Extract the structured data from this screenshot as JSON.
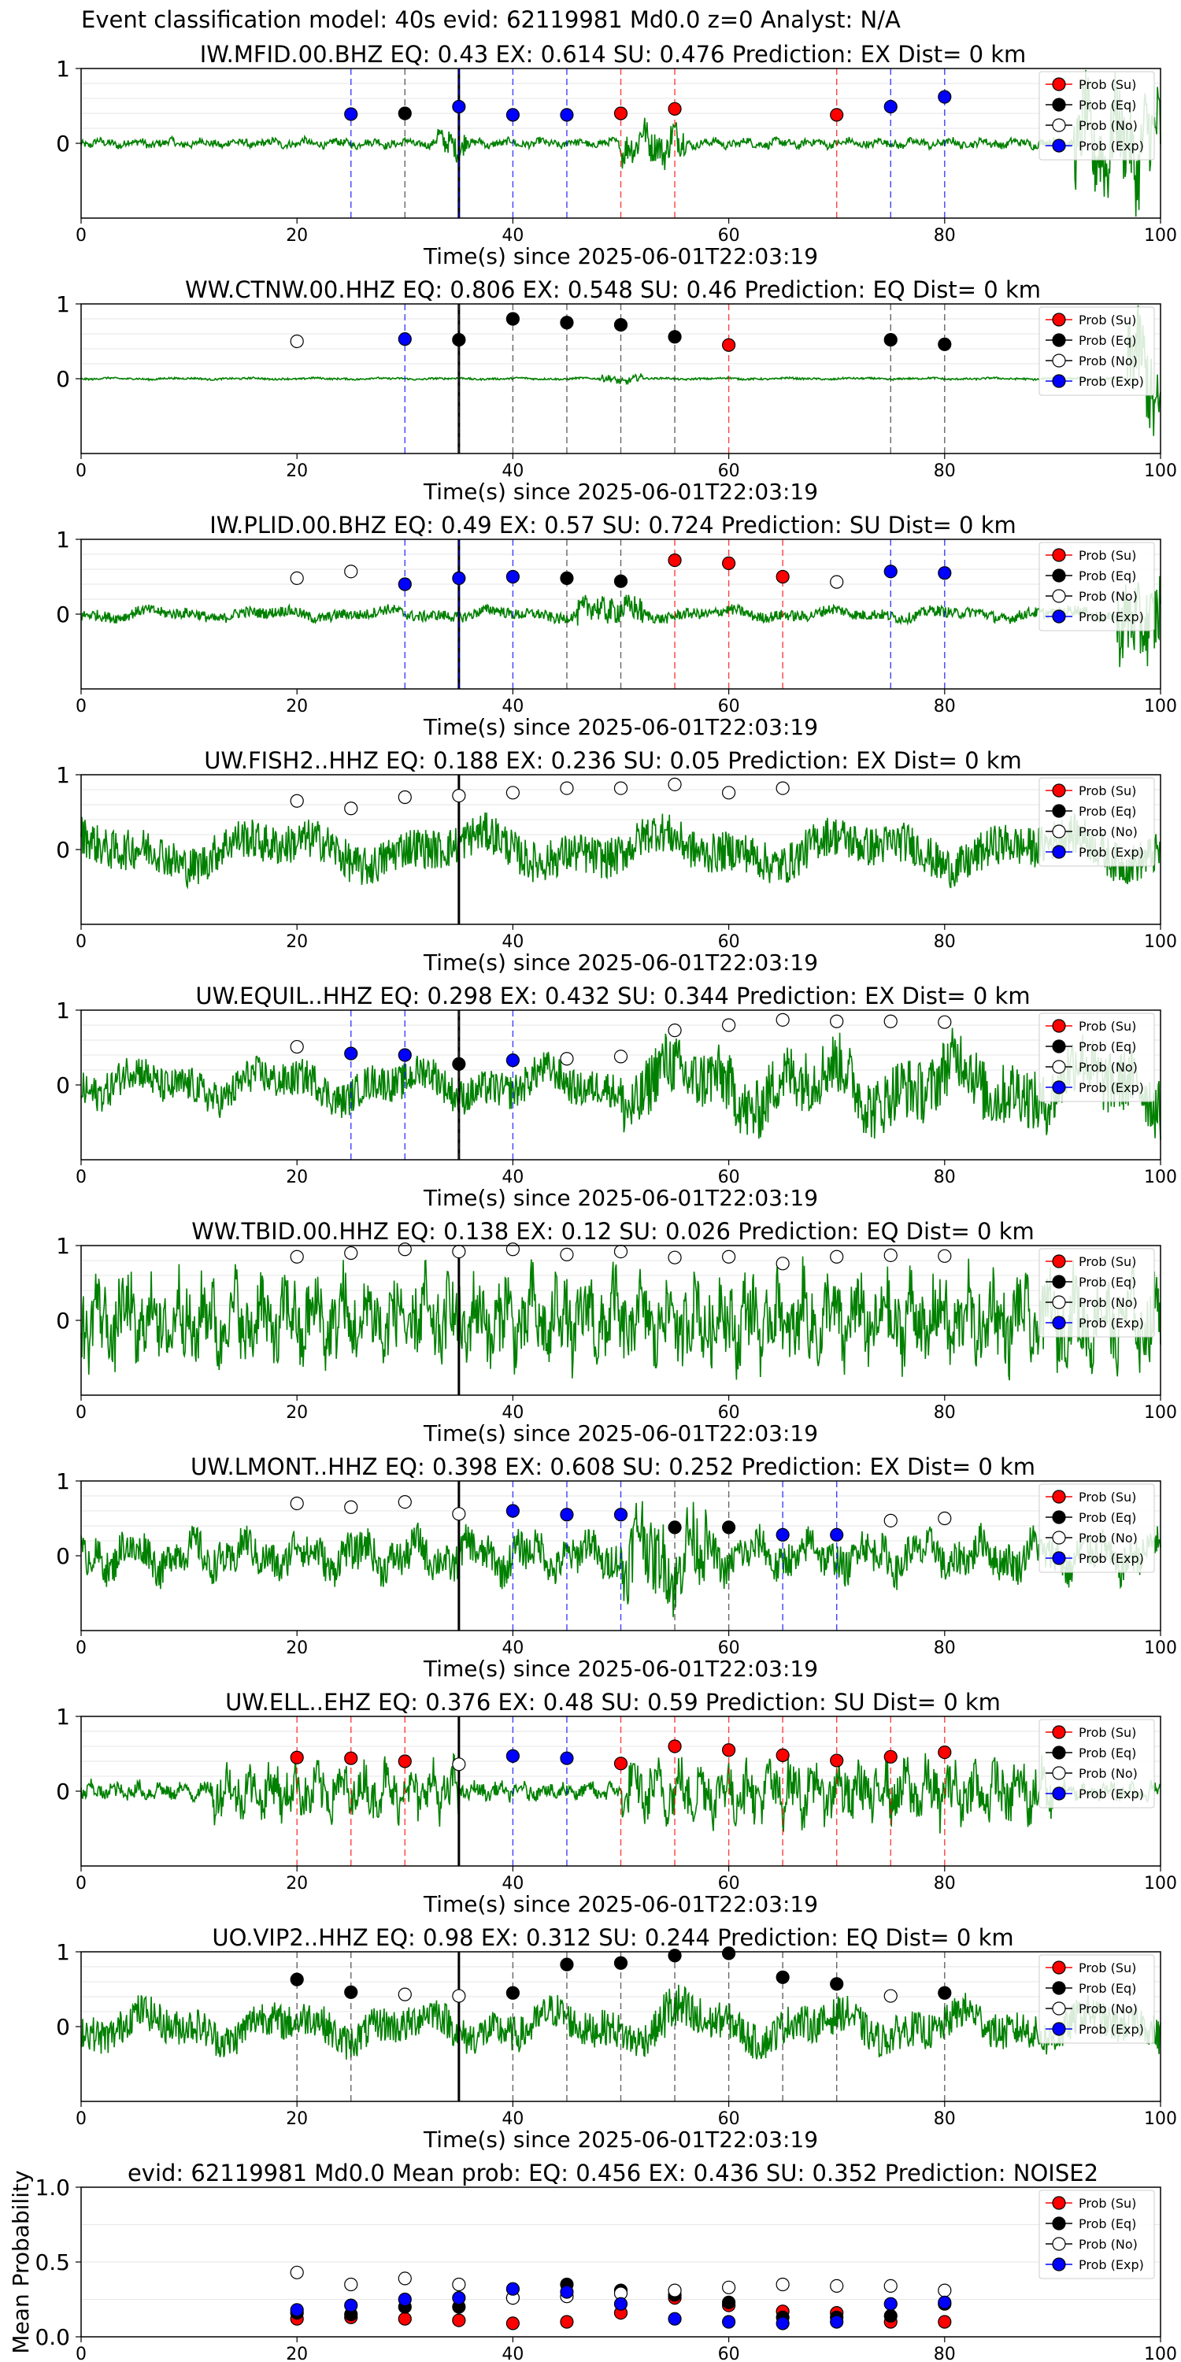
{
  "suptitle": "Event classification model: 40s evid: 62119981 Md0.0 z=0 Analyst: N/A",
  "xlabel": "Time(s) since 2025-06-01T22:03:19",
  "legend_labels": [
    "Prob (Su)",
    "Prob (Eq)",
    "Prob (No)",
    "Prob (Exp)"
  ],
  "colors": {
    "su": "#ff0000",
    "eq": "#000000",
    "no": "#ffffff",
    "exp": "#0000ff",
    "trace": "#008000"
  },
  "chart_data": [
    {
      "type": "line+scatter",
      "title": "IW.MFID.00.BHZ   EQ: 0.43   EX: 0.614   SU: 0.476    Prediction: EX     Dist= 0 km",
      "xlim": [
        0,
        100
      ],
      "ylim": [
        -1,
        1
      ],
      "yticks": [
        "1",
        "0"
      ],
      "xticks": [
        "0",
        "20",
        "40",
        "60",
        "80",
        "100"
      ],
      "trace": {
        "amp": 0.08,
        "burst": [
          [
            33,
            36,
            0.25
          ],
          [
            50,
            56,
            0.35
          ],
          [
            92,
            100,
            0.9
          ]
        ],
        "freq": 2.0
      },
      "event_line": 35,
      "points": [
        {
          "x": 25,
          "y": 0.39,
          "cls": "exp"
        },
        {
          "x": 30,
          "y": 0.4,
          "cls": "eq"
        },
        {
          "x": 35,
          "y": 0.49,
          "cls": "exp"
        },
        {
          "x": 40,
          "y": 0.38,
          "cls": "exp"
        },
        {
          "x": 45,
          "y": 0.38,
          "cls": "exp"
        },
        {
          "x": 50,
          "y": 0.4,
          "cls": "su"
        },
        {
          "x": 55,
          "y": 0.46,
          "cls": "su"
        },
        {
          "x": 70,
          "y": 0.38,
          "cls": "su"
        },
        {
          "x": 75,
          "y": 0.49,
          "cls": "exp"
        },
        {
          "x": 80,
          "y": 0.62,
          "cls": "exp"
        }
      ]
    },
    {
      "type": "line+scatter",
      "title": "WW.CTNW.00.HHZ    EQ: 0.806   EX: 0.548   SU: 0.46    Prediction: EQ     Dist= 0 km",
      "xlim": [
        0,
        100
      ],
      "ylim": [
        -1,
        1
      ],
      "yticks": [
        "1",
        "0"
      ],
      "xticks": [
        "0",
        "20",
        "40",
        "60",
        "80",
        "100"
      ],
      "trace": {
        "amp": 0.02,
        "burst": [
          [
            48,
            52,
            0.08
          ],
          [
            97,
            100,
            1.0
          ]
        ],
        "freq": 1.0
      },
      "event_line": 35,
      "points": [
        {
          "x": 20,
          "y": 0.5,
          "cls": "no"
        },
        {
          "x": 30,
          "y": 0.53,
          "cls": "exp"
        },
        {
          "x": 35,
          "y": 0.52,
          "cls": "eq"
        },
        {
          "x": 40,
          "y": 0.8,
          "cls": "eq"
        },
        {
          "x": 45,
          "y": 0.75,
          "cls": "eq"
        },
        {
          "x": 50,
          "y": 0.72,
          "cls": "eq"
        },
        {
          "x": 55,
          "y": 0.56,
          "cls": "eq"
        },
        {
          "x": 60,
          "y": 0.45,
          "cls": "su"
        },
        {
          "x": 75,
          "y": 0.52,
          "cls": "eq"
        },
        {
          "x": 80,
          "y": 0.46,
          "cls": "eq"
        }
      ]
    },
    {
      "type": "line+scatter",
      "title": "IW.PLID.00.BHZ    EQ: 0.49   EX: 0.57   SU: 0.724    Prediction: SU     Dist= 0 km",
      "xlim": [
        0,
        100
      ],
      "ylim": [
        -1,
        1
      ],
      "yticks": [
        "1",
        "0"
      ],
      "xticks": [
        "0",
        "20",
        "40",
        "60",
        "80",
        "100"
      ],
      "trace": {
        "amp": 0.12,
        "burst": [
          [
            46,
            52,
            0.3
          ],
          [
            96,
            100,
            0.9
          ]
        ],
        "freq": 0.6
      },
      "event_line": 35,
      "points": [
        {
          "x": 20,
          "y": 0.48,
          "cls": "no"
        },
        {
          "x": 25,
          "y": 0.57,
          "cls": "no"
        },
        {
          "x": 30,
          "y": 0.4,
          "cls": "exp"
        },
        {
          "x": 35,
          "y": 0.48,
          "cls": "exp"
        },
        {
          "x": 40,
          "y": 0.5,
          "cls": "exp"
        },
        {
          "x": 45,
          "y": 0.48,
          "cls": "eq"
        },
        {
          "x": 50,
          "y": 0.44,
          "cls": "eq"
        },
        {
          "x": 55,
          "y": 0.72,
          "cls": "su"
        },
        {
          "x": 60,
          "y": 0.68,
          "cls": "su"
        },
        {
          "x": 65,
          "y": 0.5,
          "cls": "su"
        },
        {
          "x": 70,
          "y": 0.43,
          "cls": "no"
        },
        {
          "x": 75,
          "y": 0.57,
          "cls": "exp"
        },
        {
          "x": 80,
          "y": 0.55,
          "cls": "exp"
        }
      ]
    },
    {
      "type": "line+scatter",
      "title": "UW.FISH2..HHZ    EQ: 0.188   EX: 0.236   SU: 0.05    Prediction: EX     Dist= 0 km",
      "xlim": [
        0,
        100
      ],
      "ylim": [
        -1,
        1
      ],
      "yticks": [
        "1",
        "0"
      ],
      "xticks": [
        "0",
        "20",
        "40",
        "60",
        "80",
        "100"
      ],
      "trace": {
        "amp": 0.45,
        "burst": [],
        "freq": 0.35
      },
      "event_line": 35,
      "points": [
        {
          "x": 20,
          "y": 0.65,
          "cls": "no"
        },
        {
          "x": 25,
          "y": 0.55,
          "cls": "no"
        },
        {
          "x": 30,
          "y": 0.7,
          "cls": "no"
        },
        {
          "x": 35,
          "y": 0.72,
          "cls": "no"
        },
        {
          "x": 40,
          "y": 0.76,
          "cls": "no"
        },
        {
          "x": 45,
          "y": 0.82,
          "cls": "no"
        },
        {
          "x": 50,
          "y": 0.82,
          "cls": "no"
        },
        {
          "x": 55,
          "y": 0.87,
          "cls": "no"
        },
        {
          "x": 60,
          "y": 0.76,
          "cls": "no"
        },
        {
          "x": 65,
          "y": 0.82,
          "cls": "no"
        }
      ]
    },
    {
      "type": "line+scatter",
      "title": "UW.EQUIL..HHZ    EQ: 0.298   EX: 0.432   SU: 0.344    Prediction: EX     Dist= 0 km",
      "xlim": [
        0,
        100
      ],
      "ylim": [
        -1,
        1
      ],
      "yticks": [
        "1",
        "0"
      ],
      "xticks": [
        "0",
        "20",
        "40",
        "60",
        "80",
        "100"
      ],
      "trace": {
        "amp": 0.4,
        "burst": [
          [
            50,
            100,
            0.7
          ]
        ],
        "freq": 0.5
      },
      "event_line": 35,
      "points": [
        {
          "x": 20,
          "y": 0.51,
          "cls": "no"
        },
        {
          "x": 25,
          "y": 0.42,
          "cls": "exp"
        },
        {
          "x": 30,
          "y": 0.4,
          "cls": "exp"
        },
        {
          "x": 35,
          "y": 0.28,
          "cls": "eq"
        },
        {
          "x": 40,
          "y": 0.33,
          "cls": "exp"
        },
        {
          "x": 45,
          "y": 0.35,
          "cls": "no"
        },
        {
          "x": 50,
          "y": 0.38,
          "cls": "no"
        },
        {
          "x": 55,
          "y": 0.73,
          "cls": "no"
        },
        {
          "x": 60,
          "y": 0.8,
          "cls": "no"
        },
        {
          "x": 65,
          "y": 0.87,
          "cls": "no"
        },
        {
          "x": 70,
          "y": 0.85,
          "cls": "no"
        },
        {
          "x": 75,
          "y": 0.85,
          "cls": "no"
        },
        {
          "x": 80,
          "y": 0.84,
          "cls": "no"
        }
      ]
    },
    {
      "type": "line+scatter",
      "title": "WW.TBID.00.HHZ    EQ: 0.138   EX: 0.12   SU: 0.026    Prediction: EQ     Dist= 0 km",
      "xlim": [
        0,
        100
      ],
      "ylim": [
        -1,
        1
      ],
      "yticks": [
        "1",
        "0"
      ],
      "xticks": [
        "0",
        "20",
        "40",
        "60",
        "80",
        "100"
      ],
      "trace": {
        "amp": 0.75,
        "burst": [],
        "freq": 2.5
      },
      "event_line": 35,
      "points": [
        {
          "x": 20,
          "y": 0.85,
          "cls": "no"
        },
        {
          "x": 25,
          "y": 0.9,
          "cls": "no"
        },
        {
          "x": 30,
          "y": 0.95,
          "cls": "no"
        },
        {
          "x": 35,
          "y": 0.92,
          "cls": "no"
        },
        {
          "x": 40,
          "y": 0.95,
          "cls": "no"
        },
        {
          "x": 45,
          "y": 0.88,
          "cls": "no"
        },
        {
          "x": 50,
          "y": 0.92,
          "cls": "no"
        },
        {
          "x": 55,
          "y": 0.84,
          "cls": "no"
        },
        {
          "x": 60,
          "y": 0.85,
          "cls": "no"
        },
        {
          "x": 65,
          "y": 0.76,
          "cls": "no"
        },
        {
          "x": 70,
          "y": 0.85,
          "cls": "no"
        },
        {
          "x": 75,
          "y": 0.87,
          "cls": "no"
        },
        {
          "x": 80,
          "y": 0.86,
          "cls": "no"
        }
      ]
    },
    {
      "type": "line+scatter",
      "title": "UW.LMONT..HHZ    EQ: 0.398   EX: 0.608   SU: 0.252    Prediction: EX     Dist= 0 km",
      "xlim": [
        0,
        100
      ],
      "ylim": [
        -1,
        1
      ],
      "yticks": [
        "1",
        "0"
      ],
      "xticks": [
        "0",
        "20",
        "40",
        "60",
        "80",
        "100"
      ],
      "trace": {
        "amp": 0.4,
        "burst": [
          [
            50,
            58,
            0.8
          ]
        ],
        "freq": 1.2
      },
      "event_line": 35,
      "points": [
        {
          "x": 20,
          "y": 0.7,
          "cls": "no"
        },
        {
          "x": 25,
          "y": 0.65,
          "cls": "no"
        },
        {
          "x": 30,
          "y": 0.72,
          "cls": "no"
        },
        {
          "x": 35,
          "y": 0.56,
          "cls": "no"
        },
        {
          "x": 40,
          "y": 0.6,
          "cls": "exp"
        },
        {
          "x": 45,
          "y": 0.55,
          "cls": "exp"
        },
        {
          "x": 50,
          "y": 0.55,
          "cls": "exp"
        },
        {
          "x": 55,
          "y": 0.38,
          "cls": "eq"
        },
        {
          "x": 60,
          "y": 0.38,
          "cls": "eq"
        },
        {
          "x": 65,
          "y": 0.28,
          "cls": "exp"
        },
        {
          "x": 70,
          "y": 0.28,
          "cls": "exp"
        },
        {
          "x": 75,
          "y": 0.47,
          "cls": "no"
        },
        {
          "x": 80,
          "y": 0.5,
          "cls": "no"
        }
      ]
    },
    {
      "type": "line+scatter",
      "title": "UW.ELL..EHZ    EQ: 0.376   EX: 0.48   SU: 0.59    Prediction: SU     Dist= 0 km",
      "xlim": [
        0,
        100
      ],
      "ylim": [
        -1,
        1
      ],
      "yticks": [
        "1",
        "0"
      ],
      "xticks": [
        "0",
        "20",
        "40",
        "60",
        "80",
        "100"
      ],
      "trace": {
        "amp": 0.15,
        "burst": [
          [
            12,
            35,
            0.45
          ],
          [
            50,
            90,
            0.5
          ]
        ],
        "freq": 3.0
      },
      "event_line": 35,
      "points": [
        {
          "x": 20,
          "y": 0.45,
          "cls": "su"
        },
        {
          "x": 25,
          "y": 0.44,
          "cls": "su"
        },
        {
          "x": 30,
          "y": 0.4,
          "cls": "su"
        },
        {
          "x": 35,
          "y": 0.36,
          "cls": "no"
        },
        {
          "x": 40,
          "y": 0.47,
          "cls": "exp"
        },
        {
          "x": 45,
          "y": 0.44,
          "cls": "exp"
        },
        {
          "x": 50,
          "y": 0.37,
          "cls": "su"
        },
        {
          "x": 55,
          "y": 0.6,
          "cls": "su"
        },
        {
          "x": 60,
          "y": 0.55,
          "cls": "su"
        },
        {
          "x": 65,
          "y": 0.48,
          "cls": "su"
        },
        {
          "x": 70,
          "y": 0.41,
          "cls": "su"
        },
        {
          "x": 75,
          "y": 0.46,
          "cls": "su"
        },
        {
          "x": 80,
          "y": 0.52,
          "cls": "su"
        }
      ]
    },
    {
      "type": "line+scatter",
      "title": "UO.VIP2..HHZ    EQ: 0.98   EX: 0.312   SU: 0.244    Prediction: EQ     Dist= 0 km",
      "xlim": [
        0,
        100
      ],
      "ylim": [
        -1,
        1
      ],
      "yticks": [
        "1",
        "0"
      ],
      "xticks": [
        "0",
        "20",
        "40",
        "60",
        "80",
        "100"
      ],
      "trace": {
        "amp": 0.4,
        "burst": [
          [
            54,
            58,
            0.6
          ]
        ],
        "freq": 0.5
      },
      "event_line": 35,
      "points": [
        {
          "x": 20,
          "y": 0.63,
          "cls": "eq"
        },
        {
          "x": 25,
          "y": 0.46,
          "cls": "eq"
        },
        {
          "x": 30,
          "y": 0.43,
          "cls": "no"
        },
        {
          "x": 35,
          "y": 0.41,
          "cls": "no"
        },
        {
          "x": 40,
          "y": 0.45,
          "cls": "eq"
        },
        {
          "x": 45,
          "y": 0.83,
          "cls": "eq"
        },
        {
          "x": 50,
          "y": 0.85,
          "cls": "eq"
        },
        {
          "x": 55,
          "y": 0.95,
          "cls": "eq"
        },
        {
          "x": 60,
          "y": 0.98,
          "cls": "eq"
        },
        {
          "x": 65,
          "y": 0.66,
          "cls": "eq"
        },
        {
          "x": 70,
          "y": 0.57,
          "cls": "eq"
        },
        {
          "x": 75,
          "y": 0.41,
          "cls": "no"
        },
        {
          "x": 80,
          "y": 0.45,
          "cls": "eq"
        }
      ]
    },
    {
      "type": "scatter",
      "title": "evid: 62119981  Md0.0   Mean prob:    EQ: 0.456  EX: 0.436  SU: 0.352    Prediction: NOISE2",
      "ylabel": "Mean Probability",
      "xlim": [
        0,
        100
      ],
      "ylim": [
        0,
        1
      ],
      "yticks": [
        "1.0",
        "0.5",
        "0.0"
      ],
      "xticks": [
        "0",
        "20",
        "40",
        "60",
        "80",
        "100"
      ],
      "series": [
        {
          "name": "Prob (Su)",
          "cls": "su",
          "x": [
            20,
            25,
            30,
            35,
            40,
            45,
            50,
            55,
            60,
            65,
            70,
            75,
            80
          ],
          "y": [
            0.12,
            0.13,
            0.12,
            0.11,
            0.09,
            0.1,
            0.16,
            0.26,
            0.21,
            0.17,
            0.16,
            0.1,
            0.1
          ]
        },
        {
          "name": "Prob (Eq)",
          "cls": "eq",
          "x": [
            20,
            25,
            30,
            35,
            40,
            45,
            50,
            55,
            60,
            65,
            70,
            75,
            80
          ],
          "y": [
            0.16,
            0.15,
            0.2,
            0.2,
            0.26,
            0.35,
            0.31,
            0.28,
            0.23,
            0.13,
            0.13,
            0.14,
            0.22
          ]
        },
        {
          "name": "Prob (No)",
          "cls": "no",
          "x": [
            20,
            25,
            30,
            35,
            40,
            45,
            50,
            55,
            60,
            65,
            70,
            75,
            80
          ],
          "y": [
            0.43,
            0.35,
            0.39,
            0.35,
            0.26,
            0.27,
            0.29,
            0.31,
            0.33,
            0.35,
            0.34,
            0.34,
            0.31
          ]
        },
        {
          "name": "Prob (Exp)",
          "cls": "exp",
          "x": [
            20,
            25,
            30,
            35,
            40,
            45,
            50,
            55,
            60,
            65,
            70,
            75,
            80
          ],
          "y": [
            0.18,
            0.21,
            0.25,
            0.26,
            0.32,
            0.3,
            0.22,
            0.12,
            0.1,
            0.09,
            0.1,
            0.22,
            0.23
          ]
        }
      ]
    }
  ]
}
